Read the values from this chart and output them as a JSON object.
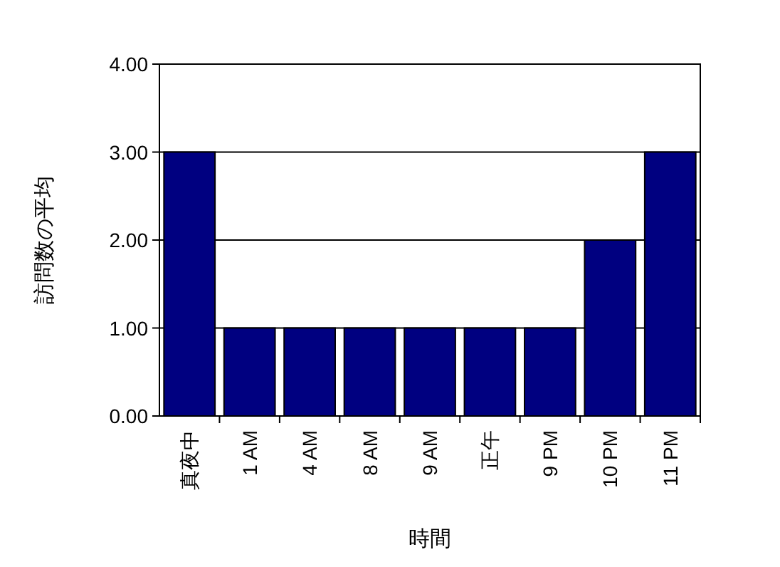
{
  "chart_data": {
    "type": "bar",
    "xlabel": "時間",
    "ylabel": "訪問数の平均",
    "categories": [
      "真夜中",
      "1 AM",
      "4 AM",
      "8 AM",
      "9 AM",
      "正午",
      "9 PM",
      "10 PM",
      "11 PM"
    ],
    "values": [
      3,
      1,
      1,
      1,
      1,
      1,
      1,
      2,
      3
    ],
    "color": "#000080",
    "ylim": [
      0,
      4
    ],
    "yticks": [
      {
        "value": 0,
        "label": "0.00"
      },
      {
        "value": 1,
        "label": "1.00"
      },
      {
        "value": 2,
        "label": "2.00"
      },
      {
        "value": 3,
        "label": "3.00"
      },
      {
        "value": 4,
        "label": "4.00"
      }
    ],
    "grid": "y"
  }
}
